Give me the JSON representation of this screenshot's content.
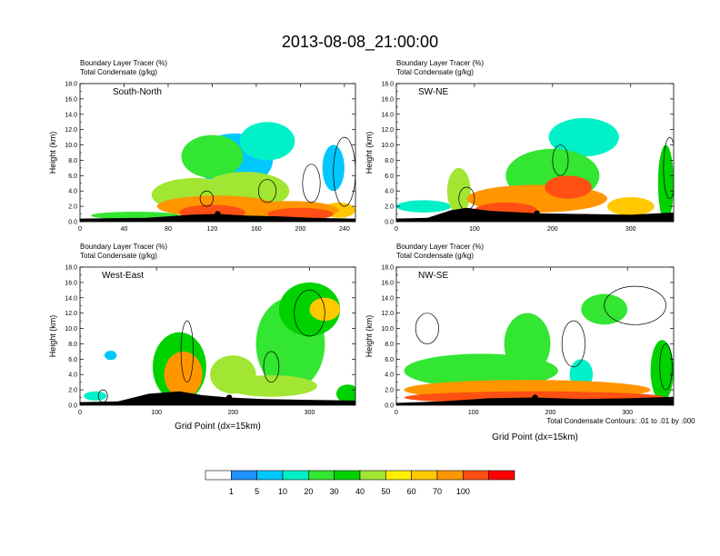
{
  "title": "2013-08-08_21:00:00",
  "colors": {
    "levels": [
      "#ffffff",
      "#1e90ff",
      "#00c8ff",
      "#00f0c8",
      "#32e632",
      "#00d200",
      "#a0e632",
      "#fff000",
      "#ffc800",
      "#ff9600",
      "#ff5014",
      "#ff0000"
    ],
    "contour": "#000000",
    "terrain": "#000000"
  },
  "colorbar": {
    "labels": [
      "1",
      "5",
      "10",
      "20",
      "30",
      "40",
      "50",
      "60",
      "70",
      "100"
    ]
  },
  "footnote": "Total Condensate Contours: .01 to .01 by .000",
  "chart_data": [
    {
      "type": "heatmap",
      "panel": "top-left",
      "label": "South-North",
      "header": [
        "Boundary Layer Tracer   (%)",
        "Total Condensate   (g/kg)"
      ],
      "ylabel": "Height (km)",
      "xlabel": "",
      "yticks": [
        "0.0",
        "2.0",
        "4.0",
        "6.0",
        "8.0",
        "10.0",
        "12.0",
        "14.0",
        "16.0",
        "18.0"
      ],
      "xticks": [
        0,
        40,
        80,
        120,
        160,
        200,
        240
      ],
      "xlim": [
        0,
        250
      ],
      "ylim": [
        0,
        18
      ],
      "marker_x": 125,
      "terrain": [
        [
          0,
          0.4
        ],
        [
          60,
          0.5
        ],
        [
          80,
          0.7
        ],
        [
          100,
          0.9
        ],
        [
          125,
          1.0
        ],
        [
          150,
          0.8
        ],
        [
          180,
          0.7
        ],
        [
          210,
          0.5
        ],
        [
          250,
          0.4
        ]
      ],
      "blobs": [
        {
          "x": 50,
          "y": 0.8,
          "rx": 40,
          "ry": 0.5,
          "v": 20
        },
        {
          "x": 105,
          "y": 3.5,
          "rx": 40,
          "ry": 2.2,
          "v": 40
        },
        {
          "x": 150,
          "y": 4.0,
          "rx": 40,
          "ry": 2.5,
          "v": 40
        },
        {
          "x": 140,
          "y": 8.0,
          "rx": 35,
          "ry": 3.5,
          "v": 5
        },
        {
          "x": 120,
          "y": 8.5,
          "rx": 28,
          "ry": 2.8,
          "v": 20
        },
        {
          "x": 170,
          "y": 10.5,
          "rx": 25,
          "ry": 2.5,
          "v": 10
        },
        {
          "x": 125,
          "y": 2.0,
          "rx": 55,
          "ry": 1.4,
          "v": 70
        },
        {
          "x": 190,
          "y": 1.5,
          "rx": 45,
          "ry": 1.2,
          "v": 80
        },
        {
          "x": 120,
          "y": 1.2,
          "rx": 30,
          "ry": 1.0,
          "v": 100
        },
        {
          "x": 200,
          "y": 1.0,
          "rx": 30,
          "ry": 0.8,
          "v": 100
        },
        {
          "x": 235,
          "y": 1.5,
          "rx": 15,
          "ry": 1.0,
          "v": 60
        },
        {
          "x": 230,
          "y": 7.0,
          "rx": 10,
          "ry": 3.0,
          "v": 5
        }
      ],
      "contours": [
        {
          "x": 240,
          "y": 6.5,
          "rx": 10,
          "ry": 4.5
        },
        {
          "x": 210,
          "y": 5.0,
          "rx": 8,
          "ry": 2.5
        },
        {
          "x": 170,
          "y": 4.0,
          "rx": 8,
          "ry": 1.5
        },
        {
          "x": 115,
          "y": 3.0,
          "rx": 6,
          "ry": 1.0
        }
      ]
    },
    {
      "type": "heatmap",
      "panel": "top-right",
      "label": "SW-NE",
      "header": [
        "Boundary Layer Tracer   (%)",
        "Total Condensate   (g/kg)"
      ],
      "ylabel": "Height (km)",
      "xlabel": "",
      "yticks": [
        "0.0",
        "2.0",
        "4.0",
        "6.0",
        "8.0",
        "10.0",
        "12.0",
        "14.0",
        "16.0",
        "18.0"
      ],
      "xticks": [
        0,
        100,
        200,
        300
      ],
      "xlim": [
        0,
        355
      ],
      "ylim": [
        0,
        18
      ],
      "marker_x": 180,
      "terrain": [
        [
          0,
          0.4
        ],
        [
          40,
          0.5
        ],
        [
          70,
          1.5
        ],
        [
          90,
          1.8
        ],
        [
          120,
          1.4
        ],
        [
          180,
          1.1
        ],
        [
          240,
          1.0
        ],
        [
          300,
          0.9
        ],
        [
          355,
          1.2
        ]
      ],
      "blobs": [
        {
          "x": 35,
          "y": 2.0,
          "rx": 35,
          "ry": 0.8,
          "v": 10
        },
        {
          "x": 80,
          "y": 4.0,
          "rx": 15,
          "ry": 3.0,
          "v": 40
        },
        {
          "x": 200,
          "y": 6.0,
          "rx": 60,
          "ry": 3.5,
          "v": 20
        },
        {
          "x": 240,
          "y": 11.0,
          "rx": 45,
          "ry": 2.5,
          "v": 10
        },
        {
          "x": 180,
          "y": 3.0,
          "rx": 90,
          "ry": 1.8,
          "v": 70
        },
        {
          "x": 220,
          "y": 4.5,
          "rx": 30,
          "ry": 1.5,
          "v": 100
        },
        {
          "x": 140,
          "y": 1.5,
          "rx": 40,
          "ry": 1.0,
          "v": 100
        },
        {
          "x": 300,
          "y": 2.0,
          "rx": 30,
          "ry": 1.2,
          "v": 60
        },
        {
          "x": 345,
          "y": 5.0,
          "rx": 10,
          "ry": 5.0,
          "v": 30
        }
      ],
      "contours": [
        {
          "x": 350,
          "y": 7.0,
          "rx": 8,
          "ry": 4.0
        },
        {
          "x": 210,
          "y": 8.0,
          "rx": 10,
          "ry": 2.0
        },
        {
          "x": 90,
          "y": 3.0,
          "rx": 10,
          "ry": 1.5
        }
      ]
    },
    {
      "type": "heatmap",
      "panel": "bottom-left",
      "label": "West-East",
      "header": [
        "Boundary Layer Tracer   (%)",
        "Total Condensate   (g/kg)"
      ],
      "ylabel": "Height (km)",
      "xlabel": "Grid Point (dx=15km)",
      "yticks": [
        "0.0",
        "2.0",
        "4.0",
        "6.0",
        "8.0",
        "10.0",
        "12.0",
        "14.0",
        "16.0",
        "18.0"
      ],
      "xticks": [
        0,
        100,
        200,
        300
      ],
      "xlim": [
        0,
        360
      ],
      "ylim": [
        0,
        18
      ],
      "marker_x": 195,
      "terrain": [
        [
          0,
          0.4
        ],
        [
          50,
          0.5
        ],
        [
          90,
          1.5
        ],
        [
          130,
          1.8
        ],
        [
          160,
          1.3
        ],
        [
          195,
          1.0
        ],
        [
          240,
          0.8
        ],
        [
          300,
          0.7
        ],
        [
          360,
          0.6
        ]
      ],
      "blobs": [
        {
          "x": 130,
          "y": 5.0,
          "rx": 35,
          "ry": 4.5,
          "v": 30
        },
        {
          "x": 135,
          "y": 4.0,
          "rx": 25,
          "ry": 3.0,
          "v": 80
        },
        {
          "x": 200,
          "y": 4.0,
          "rx": 30,
          "ry": 2.5,
          "v": 40
        },
        {
          "x": 275,
          "y": 8.0,
          "rx": 45,
          "ry": 6.0,
          "v": 20
        },
        {
          "x": 300,
          "y": 12.5,
          "rx": 40,
          "ry": 3.5,
          "v": 30
        },
        {
          "x": 320,
          "y": 12.5,
          "rx": 20,
          "ry": 1.5,
          "v": 60
        },
        {
          "x": 250,
          "y": 2.5,
          "rx": 60,
          "ry": 1.4,
          "v": 40
        },
        {
          "x": 350,
          "y": 1.5,
          "rx": 15,
          "ry": 1.2,
          "v": 30
        },
        {
          "x": 40,
          "y": 6.5,
          "rx": 8,
          "ry": 0.6,
          "v": 5
        },
        {
          "x": 20,
          "y": 1.2,
          "rx": 15,
          "ry": 0.6,
          "v": 10
        }
      ],
      "contours": [
        {
          "x": 300,
          "y": 12.0,
          "rx": 20,
          "ry": 3.0
        },
        {
          "x": 140,
          "y": 7.0,
          "rx": 8,
          "ry": 4.0
        },
        {
          "x": 250,
          "y": 5.0,
          "rx": 10,
          "ry": 2.0
        },
        {
          "x": 30,
          "y": 1.2,
          "rx": 6,
          "ry": 0.8
        }
      ]
    },
    {
      "type": "heatmap",
      "panel": "bottom-right",
      "label": "NW-SE",
      "header": [
        "Boundary Layer Tracer   (%)",
        "Total Condensate   (g/kg)"
      ],
      "ylabel": "Height (km)",
      "xlabel": "Grid Point (dx=15km)",
      "yticks": [
        "0.0",
        "2.0",
        "4.0",
        "6.0",
        "8.0",
        "10.0",
        "12.0",
        "14.0",
        "16.0",
        "18.0"
      ],
      "xticks": [
        0,
        100,
        200,
        300
      ],
      "xlim": [
        0,
        360
      ],
      "ylim": [
        0,
        18
      ],
      "marker_x": 180,
      "terrain": [
        [
          0,
          0.3
        ],
        [
          60,
          0.5
        ],
        [
          120,
          0.9
        ],
        [
          180,
          1.0
        ],
        [
          240,
          0.8
        ],
        [
          300,
          0.9
        ],
        [
          360,
          1.1
        ]
      ],
      "blobs": [
        {
          "x": 110,
          "y": 4.5,
          "rx": 100,
          "ry": 2.2,
          "v": 20
        },
        {
          "x": 170,
          "y": 8.0,
          "rx": 30,
          "ry": 4.0,
          "v": 20
        },
        {
          "x": 170,
          "y": 2.0,
          "rx": 160,
          "ry": 1.3,
          "v": 70
        },
        {
          "x": 180,
          "y": 1.0,
          "rx": 170,
          "ry": 0.8,
          "v": 100
        },
        {
          "x": 270,
          "y": 12.5,
          "rx": 30,
          "ry": 2.0,
          "v": 20
        },
        {
          "x": 345,
          "y": 4.5,
          "rx": 15,
          "ry": 4.0,
          "v": 30
        },
        {
          "x": 240,
          "y": 4.0,
          "rx": 15,
          "ry": 2.0,
          "v": 10
        }
      ],
      "contours": [
        {
          "x": 310,
          "y": 13.0,
          "rx": 40,
          "ry": 2.5
        },
        {
          "x": 40,
          "y": 10.0,
          "rx": 15,
          "ry": 2.0
        },
        {
          "x": 230,
          "y": 8.0,
          "rx": 15,
          "ry": 3.0
        },
        {
          "x": 350,
          "y": 5.0,
          "rx": 8,
          "ry": 3.0
        }
      ]
    }
  ]
}
